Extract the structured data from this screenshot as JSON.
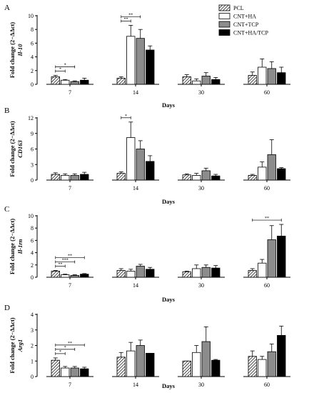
{
  "legend": [
    {
      "label": "PCL",
      "key": "pcl"
    },
    {
      "label": "CNT+HA",
      "key": "cnt_ha"
    },
    {
      "label": "CNT+TCP",
      "key": "cnt_tcp"
    },
    {
      "label": "CNT+HA/TCP",
      "key": "cnt_ha_tcp"
    }
  ],
  "colors": {
    "pcl": "hatched",
    "cnt_ha": "#ffffff",
    "cnt_tcp": "#8c8c8c",
    "cnt_ha_tcp": "#000000"
  },
  "chart_data": [
    {
      "panel": "A",
      "type": "bar",
      "ylabel": "Fold change (2−ΔΔct)",
      "gene": "Il-10",
      "xlabel": "Days",
      "categories": [
        "7",
        "14",
        "30",
        "60"
      ],
      "ylim": [
        0,
        10
      ],
      "yticks": [
        0,
        2,
        4,
        6,
        8,
        10
      ],
      "series": [
        {
          "name": "PCL",
          "values": [
            1.1,
            0.9,
            1.1,
            1.3
          ],
          "errors": [
            0.2,
            0.2,
            0.3,
            0.5
          ]
        },
        {
          "name": "CNT+HA",
          "values": [
            0.6,
            7.0,
            0.5,
            2.5
          ],
          "errors": [
            0.1,
            1.6,
            0.3,
            1.2
          ]
        },
        {
          "name": "CNT+TCP",
          "values": [
            0.4,
            6.7,
            1.2,
            2.3
          ],
          "errors": [
            0.1,
            1.3,
            0.5,
            1.0
          ]
        },
        {
          "name": "CNT+HA/TCP",
          "values": [
            0.6,
            5.0,
            0.7,
            1.7
          ],
          "errors": [
            0.3,
            0.6,
            0.3,
            0.8
          ]
        }
      ],
      "significance": [
        {
          "day": "7",
          "from": "PCL",
          "to": "CNT+HA",
          "label": "*"
        },
        {
          "day": "7",
          "from": "PCL",
          "to": "CNT+TCP",
          "label": "*"
        },
        {
          "day": "14",
          "from": "PCL",
          "to": "CNT+HA",
          "label": "**"
        },
        {
          "day": "14",
          "from": "PCL",
          "to": "CNT+TCP",
          "label": "**"
        }
      ]
    },
    {
      "panel": "B",
      "type": "bar",
      "ylabel": "Fold change (2−ΔΔct)",
      "gene": "CD163",
      "xlabel": "Days",
      "categories": [
        "7",
        "14",
        "30",
        "60"
      ],
      "ylim": [
        0,
        12
      ],
      "yticks": [
        0,
        3,
        6,
        9,
        12
      ],
      "series": [
        {
          "name": "PCL",
          "values": [
            1.1,
            1.3,
            1.0,
            0.9
          ],
          "errors": [
            0.3,
            0.3,
            0.2,
            0.2
          ]
        },
        {
          "name": "CNT+HA",
          "values": [
            0.9,
            8.2,
            0.9,
            2.5
          ],
          "errors": [
            0.3,
            3.0,
            0.4,
            1.0
          ]
        },
        {
          "name": "CNT+TCP",
          "values": [
            0.9,
            6.0,
            1.8,
            4.9
          ],
          "errors": [
            0.3,
            1.6,
            0.5,
            2.9
          ]
        },
        {
          "name": "CNT+HA/TCP",
          "values": [
            1.1,
            3.6,
            0.8,
            2.2
          ],
          "errors": [
            0.4,
            1.1,
            0.3,
            0.2
          ]
        }
      ],
      "significance": [
        {
          "day": "14",
          "from": "PCL",
          "to": "CNT+HA",
          "label": "*"
        }
      ]
    },
    {
      "panel": "C",
      "type": "bar",
      "ylabel": "Fold change (2−ΔΔct)",
      "gene": "Il-1rn",
      "xlabel": "Days",
      "categories": [
        "7",
        "14",
        "30",
        "60"
      ],
      "ylim": [
        0,
        10
      ],
      "yticks": [
        0,
        2,
        4,
        6,
        8,
        10
      ],
      "series": [
        {
          "name": "PCL",
          "values": [
            1.0,
            1.1,
            0.9,
            1.1
          ],
          "errors": [
            0.1,
            0.3,
            0.1,
            0.3
          ]
        },
        {
          "name": "CNT+HA",
          "values": [
            0.4,
            1.0,
            1.4,
            2.3
          ],
          "errors": [
            0.1,
            0.3,
            0.6,
            0.6
          ]
        },
        {
          "name": "CNT+TCP",
          "values": [
            0.3,
            1.8,
            1.6,
            6.1
          ],
          "errors": [
            0.1,
            0.3,
            0.4,
            2.3
          ]
        },
        {
          "name": "CNT+HA/TCP",
          "values": [
            0.5,
            1.3,
            1.5,
            6.7
          ],
          "errors": [
            0.1,
            0.3,
            0.4,
            1.9
          ]
        }
      ],
      "significance": [
        {
          "day": "7",
          "from": "PCL",
          "to": "CNT+HA",
          "label": "**"
        },
        {
          "day": "7",
          "from": "PCL",
          "to": "CNT+TCP",
          "label": "***"
        },
        {
          "day": "7",
          "from": "PCL",
          "to": "CNT+HA/TCP",
          "label": "**"
        },
        {
          "day": "60",
          "from": "PCL",
          "to": "CNT+HA/TCP",
          "label": "**"
        }
      ]
    },
    {
      "panel": "D",
      "type": "bar",
      "ylabel": "Fold change (2−ΔΔct)",
      "gene": "Arg1",
      "xlabel": "Days",
      "categories": [
        "7",
        "14",
        "30",
        "60"
      ],
      "ylim": [
        0,
        4
      ],
      "yticks": [
        0,
        1,
        2,
        3,
        4
      ],
      "series": [
        {
          "name": "PCL",
          "values": [
            1.05,
            1.25,
            1.0,
            1.3
          ],
          "errors": [
            0.15,
            0.3,
            0.0,
            0.35
          ]
        },
        {
          "name": "CNT+HA",
          "values": [
            0.55,
            1.65,
            1.55,
            1.1
          ],
          "errors": [
            0.1,
            0.55,
            0.45,
            0.2
          ]
        },
        {
          "name": "CNT+TCP",
          "values": [
            0.55,
            2.0,
            2.25,
            1.6
          ],
          "errors": [
            0.1,
            0.35,
            0.95,
            0.5
          ]
        },
        {
          "name": "CNT+HA/TCP",
          "values": [
            0.5,
            1.5,
            1.05,
            2.65
          ],
          "errors": [
            0.1,
            0.0,
            0.05,
            0.6
          ]
        }
      ],
      "significance": [
        {
          "day": "7",
          "from": "PCL",
          "to": "CNT+HA",
          "label": "*"
        },
        {
          "day": "7",
          "from": "PCL",
          "to": "CNT+TCP",
          "label": "*"
        },
        {
          "day": "7",
          "from": "PCL",
          "to": "CNT+HA/TCP",
          "label": "**"
        }
      ]
    }
  ]
}
